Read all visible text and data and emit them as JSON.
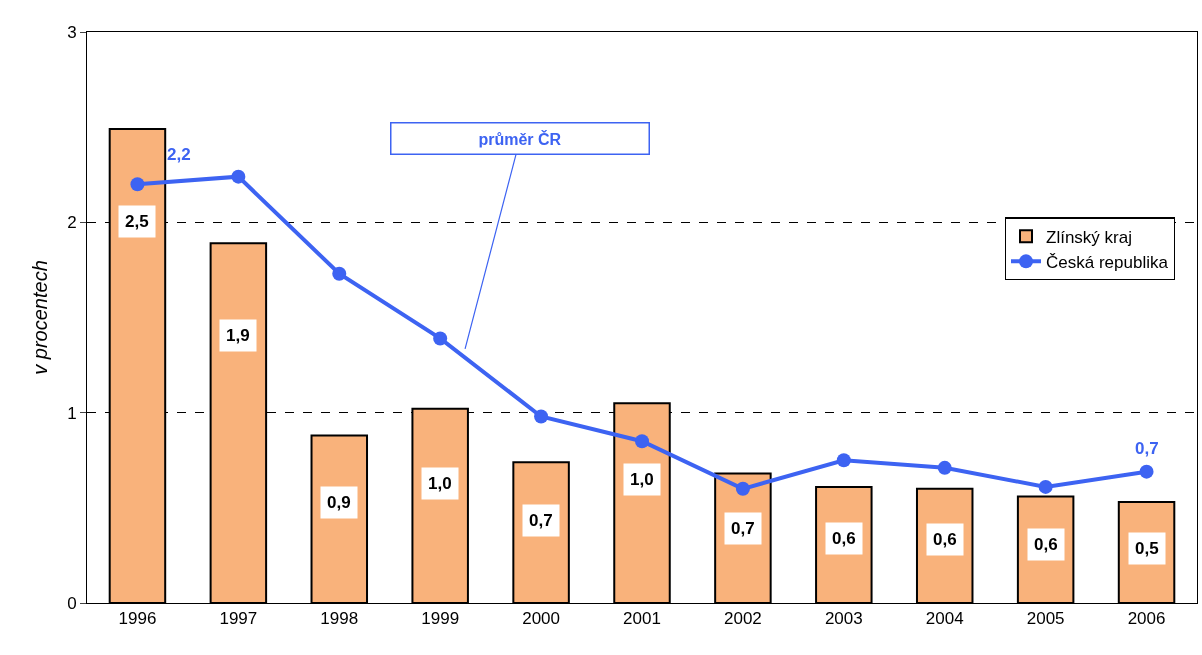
{
  "chart_data": {
    "type": "bar",
    "ylabel": "v procentech",
    "categories": [
      "1996",
      "1997",
      "1998",
      "1999",
      "2000",
      "2001",
      "2002",
      "2003",
      "2004",
      "2005",
      "2006"
    ],
    "series": [
      {
        "name": "Zlínský kraj",
        "color": "#f9b27b",
        "values": [
          2.49,
          1.89,
          0.88,
          1.02,
          0.74,
          1.05,
          0.68,
          0.61,
          0.6,
          0.56,
          0.53
        ],
        "value_labels": [
          "2,5",
          "1,9",
          "0,9",
          "1,0",
          "0,7",
          "1,0",
          "0,7",
          "0,6",
          "0,6",
          "0,6",
          "0,5"
        ]
      },
      {
        "name": "Česká republika",
        "type": "line",
        "color": "#3d63f2",
        "marker": "circle",
        "values": [
          2.2,
          2.24,
          1.73,
          1.39,
          0.98,
          0.85,
          0.6,
          0.75,
          0.71,
          0.61,
          0.69
        ],
        "value_labels": [
          "2,2",
          null,
          null,
          null,
          null,
          null,
          null,
          null,
          null,
          null,
          "0,7"
        ]
      }
    ],
    "ylim": [
      0,
      3
    ],
    "yticks": [
      0,
      1,
      2,
      3
    ],
    "grid": "y",
    "legend": "right",
    "annotations": [
      "průměr ČR"
    ]
  }
}
